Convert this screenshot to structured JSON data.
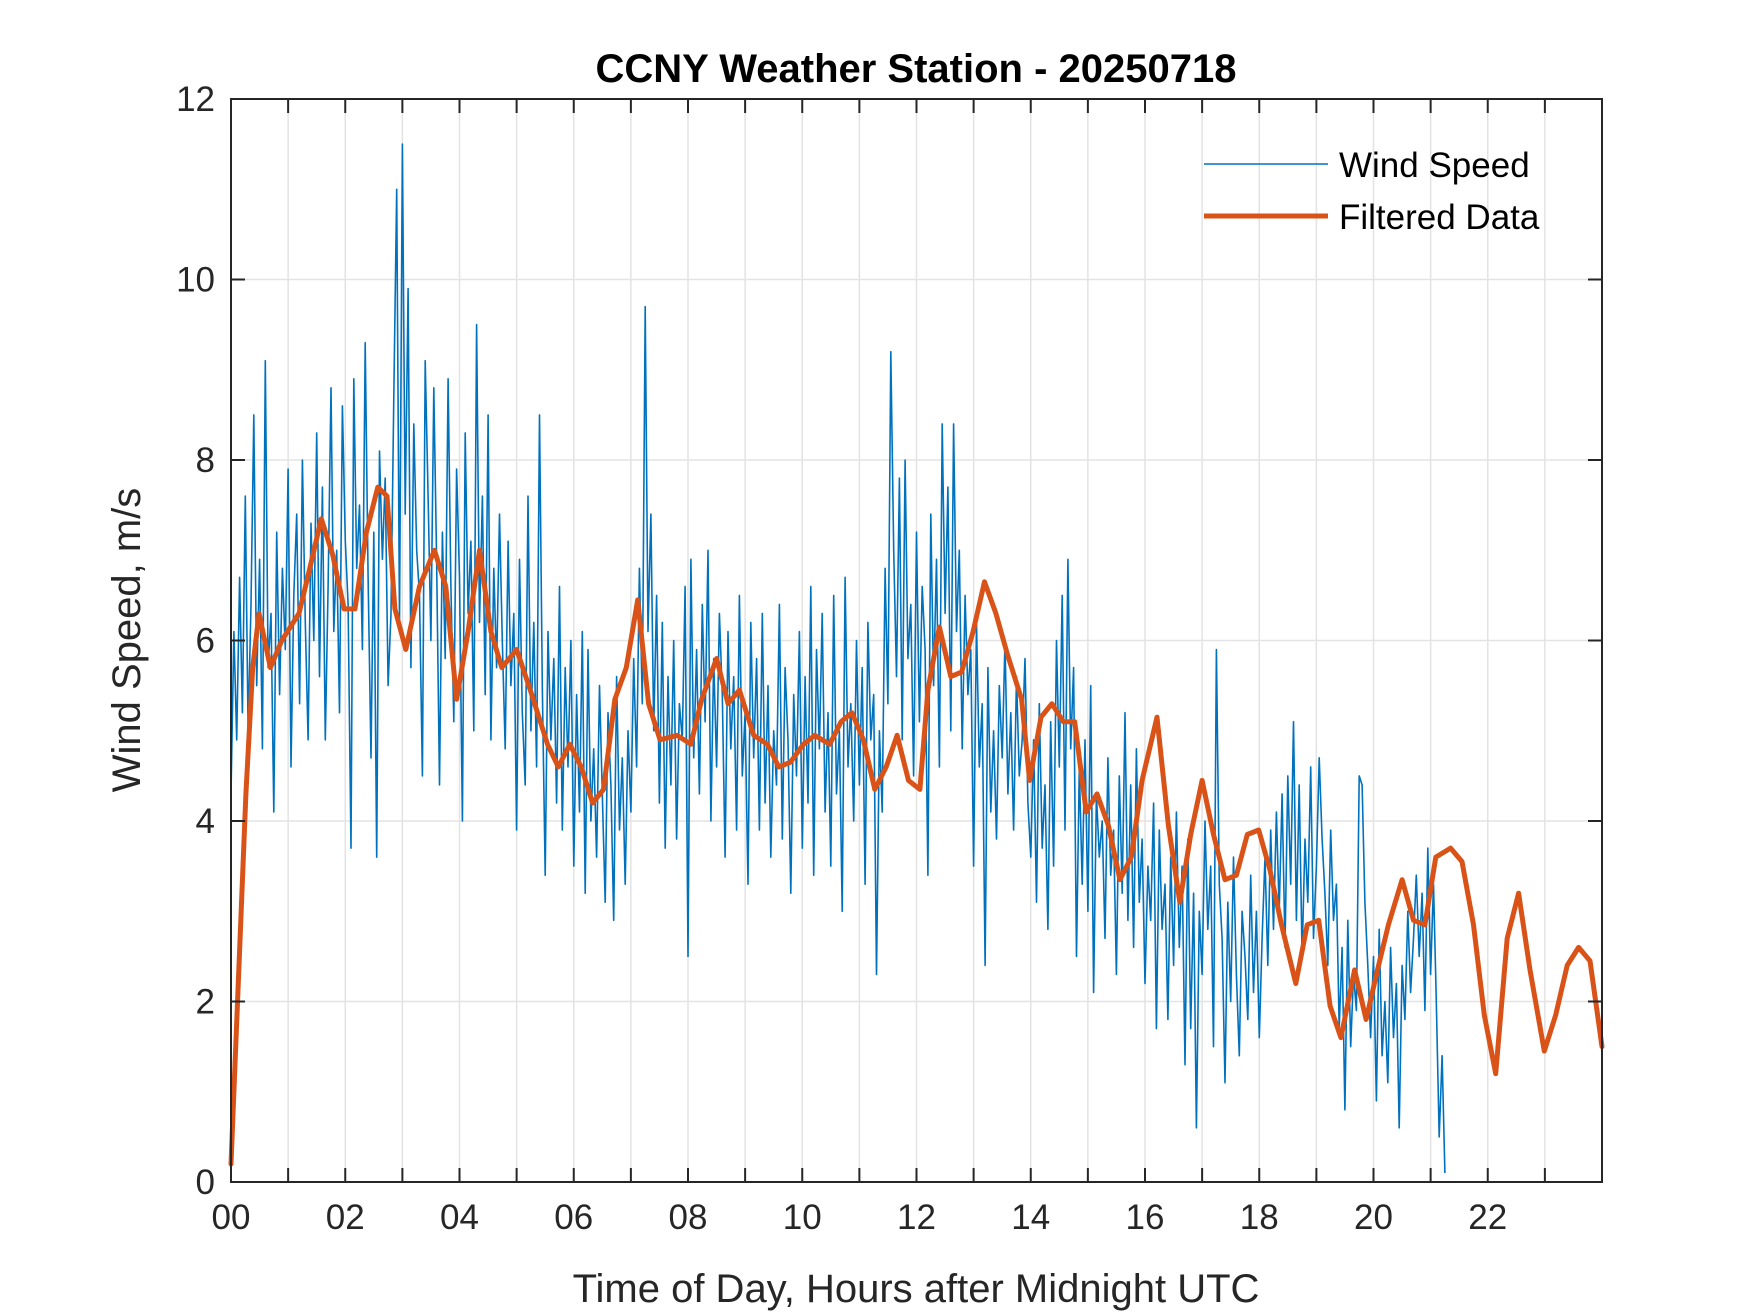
{
  "chart_data": {
    "type": "line",
    "title": "CCNY Weather Station - 20250718",
    "xlabel": "Time of Day, Hours after Midnight UTC",
    "ylabel": "Wind Speed, m/s",
    "xlim": [
      0,
      24
    ],
    "ylim": [
      0,
      12
    ],
    "grid": true,
    "x_ticks": [
      0,
      2,
      4,
      6,
      8,
      10,
      12,
      14,
      16,
      18,
      20,
      22
    ],
    "x_tick_labels": [
      "00",
      "02",
      "04",
      "06",
      "08",
      "10",
      "12",
      "14",
      "16",
      "18",
      "20",
      "22"
    ],
    "x_minor_grid_step_hours": 1,
    "y_ticks": [
      0,
      2,
      4,
      6,
      8,
      10,
      12
    ],
    "y_tick_labels": [
      "0",
      "2",
      "4",
      "6",
      "8",
      "10",
      "12"
    ],
    "legend": {
      "placement": "top-right",
      "entries": [
        "Wind Speed",
        "Filtered Data"
      ]
    },
    "series": [
      {
        "name": "Wind Speed",
        "color": "#0072BD",
        "x_start_hours": 0,
        "x_step_hours": 0.05,
        "values": [
          4.3,
          6.1,
          4.9,
          6.7,
          5.2,
          7.6,
          5.0,
          6.4,
          8.5,
          5.5,
          6.9,
          4.8,
          9.1,
          5.7,
          6.3,
          4.1,
          7.2,
          5.4,
          6.8,
          5.9,
          7.9,
          4.6,
          6.5,
          7.4,
          5.3,
          8.0,
          6.2,
          4.9,
          7.3,
          6.0,
          8.3,
          5.6,
          7.7,
          4.9,
          6.6,
          8.8,
          6.1,
          7.0,
          5.2,
          8.6,
          7.1,
          6.4,
          3.7,
          8.9,
          6.8,
          7.5,
          5.9,
          9.3,
          6.7,
          4.7,
          7.2,
          3.6,
          8.1,
          6.9,
          7.8,
          5.5,
          6.3,
          8.7,
          11.0,
          6.2,
          11.5,
          7.4,
          9.9,
          5.7,
          8.4,
          7.0,
          6.5,
          4.5,
          9.1,
          7.6,
          6.0,
          8.8,
          6.9,
          4.4,
          7.2,
          5.8,
          8.9,
          6.6,
          5.1,
          7.9,
          6.7,
          4.0,
          8.3,
          6.3,
          7.1,
          5.0,
          9.5,
          6.2,
          7.6,
          5.4,
          8.5,
          4.9,
          6.8,
          5.7,
          7.4,
          6.0,
          4.8,
          7.1,
          5.5,
          6.3,
          3.9,
          6.9,
          5.2,
          4.4,
          7.6,
          5.0,
          6.2,
          4.6,
          8.5,
          5.5,
          3.4,
          6.1,
          4.9,
          5.8,
          4.2,
          6.6,
          3.9,
          5.7,
          4.6,
          6.0,
          3.5,
          5.4,
          4.1,
          6.1,
          3.2,
          5.9,
          4.0,
          4.8,
          3.6,
          5.5,
          4.3,
          3.1,
          5.2,
          4.4,
          2.9,
          5.6,
          3.9,
          4.7,
          3.3,
          5.0,
          4.1,
          5.8,
          4.6,
          6.8,
          5.3,
          9.7,
          6.1,
          7.4,
          5.0,
          6.5,
          4.2,
          6.2,
          3.7,
          5.6,
          4.4,
          6.0,
          3.8,
          5.3,
          4.9,
          6.6,
          2.5,
          6.9,
          4.7,
          5.9,
          4.3,
          6.4,
          5.1,
          7.0,
          4.0,
          5.8,
          4.6,
          6.3,
          5.4,
          3.6,
          6.1,
          4.8,
          5.6,
          3.9,
          6.5,
          4.5,
          5.2,
          3.3,
          6.2,
          4.7,
          5.8,
          3.9,
          6.3,
          4.2,
          5.5,
          3.6,
          5.0,
          4.4,
          6.4,
          3.8,
          5.7,
          4.9,
          3.2,
          5.4,
          4.5,
          6.1,
          3.7,
          5.6,
          4.2,
          6.6,
          3.4,
          5.9,
          4.8,
          6.3,
          4.1,
          5.2,
          3.5,
          6.5,
          4.3,
          5.0,
          3.0,
          6.7,
          4.6,
          5.3,
          4.0,
          6.0,
          4.4,
          5.7,
          3.3,
          6.2,
          4.9,
          5.4,
          2.3,
          5.0,
          4.1,
          6.8,
          5.3,
          9.2,
          7.0,
          5.6,
          7.8,
          4.9,
          8.0,
          5.8,
          6.4,
          4.5,
          7.2,
          5.1,
          6.6,
          5.9,
          3.4,
          7.4,
          5.5,
          6.9,
          4.6,
          8.4,
          6.3,
          7.7,
          5.0,
          8.4,
          6.1,
          7.0,
          4.8,
          6.5,
          5.4,
          5.9,
          3.5,
          6.2,
          4.6,
          5.3,
          2.4,
          5.7,
          4.1,
          5.0,
          3.8,
          5.5,
          4.7,
          6.0,
          4.3,
          5.2,
          3.9,
          5.6,
          4.5,
          4.9,
          5.8,
          4.2,
          3.6,
          4.9,
          3.1,
          5.3,
          3.7,
          4.4,
          2.8,
          5.1,
          3.5,
          6.0,
          4.6,
          6.5,
          3.9,
          6.9,
          4.8,
          5.7,
          2.5,
          4.6,
          3.3,
          4.9,
          3.0,
          5.5,
          2.1,
          4.3,
          3.6,
          4.0,
          2.7,
          4.7,
          3.4,
          3.9,
          2.3,
          4.5,
          3.2,
          5.2,
          2.9,
          4.4,
          2.6,
          4.8,
          3.1,
          3.8,
          2.2,
          3.5,
          2.9,
          4.2,
          1.7,
          3.9,
          2.8,
          3.3,
          1.8,
          3.6,
          2.4,
          4.1,
          2.6,
          3.5,
          1.3,
          3.8,
          1.7,
          3.2,
          0.6,
          3.0,
          2.3,
          4.0,
          2.8,
          3.5,
          1.5,
          5.9,
          3.3,
          2.7,
          1.1,
          3.1,
          2.0,
          3.6,
          2.3,
          1.4,
          3.0,
          2.5,
          1.8,
          3.4,
          2.1,
          3.0,
          1.6,
          2.7,
          3.6,
          2.4,
          3.9,
          2.8,
          4.1,
          3.0,
          4.3,
          2.6,
          4.5,
          3.3,
          5.1,
          2.9,
          4.4,
          2.5,
          3.8,
          3.1,
          4.6,
          2.7,
          3.5,
          4.7,
          3.8,
          3.2,
          2.4,
          3.9,
          2.9,
          3.3,
          1.7,
          2.6,
          0.8,
          2.9,
          1.5,
          2.3,
          1.9,
          4.5,
          4.4,
          3.1,
          2.4,
          1.6,
          2.5,
          0.9,
          2.8,
          1.4,
          2.0,
          1.1,
          2.6,
          1.6,
          2.2,
          0.6,
          2.4,
          1.8,
          3.0,
          2.1,
          2.7,
          3.4,
          2.5,
          3.2,
          1.9,
          3.7,
          2.3,
          3.3,
          2.0,
          0.5,
          1.4,
          0.1
        ]
      },
      {
        "name": "Filtered Data",
        "color": "#D95319",
        "points": [
          [
            0,
            0.2
          ],
          [
            0.26,
            4.3
          ],
          [
            0.38,
            5.7
          ],
          [
            0.49,
            6.3
          ],
          [
            0.69,
            5.7
          ],
          [
            0.89,
            6.0
          ],
          [
            1.19,
            6.3
          ],
          [
            1.38,
            6.8
          ],
          [
            1.58,
            7.35
          ],
          [
            1.78,
            6.95
          ],
          [
            1.98,
            6.35
          ],
          [
            2.17,
            6.35
          ],
          [
            2.37,
            7.2
          ],
          [
            2.57,
            7.7
          ],
          [
            2.73,
            7.6
          ],
          [
            2.87,
            6.35
          ],
          [
            3.06,
            5.9
          ],
          [
            3.3,
            6.6
          ],
          [
            3.56,
            7.0
          ],
          [
            3.76,
            6.6
          ],
          [
            3.95,
            5.35
          ],
          [
            4.15,
            6.1
          ],
          [
            4.35,
            7.0
          ],
          [
            4.55,
            6.1
          ],
          [
            4.74,
            5.7
          ],
          [
            5.0,
            5.9
          ],
          [
            5.24,
            5.45
          ],
          [
            5.54,
            4.85
          ],
          [
            5.73,
            4.6
          ],
          [
            5.93,
            4.85
          ],
          [
            6.13,
            4.6
          ],
          [
            6.33,
            4.2
          ],
          [
            6.52,
            4.35
          ],
          [
            6.72,
            5.35
          ],
          [
            6.92,
            5.7
          ],
          [
            7.12,
            6.45
          ],
          [
            7.31,
            5.3
          ],
          [
            7.51,
            4.9
          ],
          [
            7.81,
            4.95
          ],
          [
            8.05,
            4.85
          ],
          [
            8.24,
            5.35
          ],
          [
            8.5,
            5.8
          ],
          [
            8.7,
            5.3
          ],
          [
            8.9,
            5.45
          ],
          [
            9.15,
            4.95
          ],
          [
            9.39,
            4.85
          ],
          [
            9.59,
            4.6
          ],
          [
            9.79,
            4.65
          ],
          [
            10.02,
            4.85
          ],
          [
            10.22,
            4.95
          ],
          [
            10.48,
            4.85
          ],
          [
            10.68,
            5.1
          ],
          [
            10.87,
            5.2
          ],
          [
            11.07,
            4.9
          ],
          [
            11.27,
            4.35
          ],
          [
            11.47,
            4.6
          ],
          [
            11.66,
            4.95
          ],
          [
            11.86,
            4.45
          ],
          [
            12.06,
            4.35
          ],
          [
            12.2,
            5.45
          ],
          [
            12.4,
            6.15
          ],
          [
            12.6,
            5.6
          ],
          [
            12.79,
            5.65
          ],
          [
            12.99,
            6.1
          ],
          [
            13.19,
            6.65
          ],
          [
            13.39,
            6.3
          ],
          [
            13.59,
            5.85
          ],
          [
            13.84,
            5.35
          ],
          [
            13.98,
            4.45
          ],
          [
            14.18,
            5.15
          ],
          [
            14.37,
            5.3
          ],
          [
            14.57,
            5.1
          ],
          [
            14.77,
            5.1
          ],
          [
            14.97,
            4.1
          ],
          [
            15.16,
            4.3
          ],
          [
            15.36,
            3.95
          ],
          [
            15.56,
            3.35
          ],
          [
            15.76,
            3.6
          ],
          [
            15.95,
            4.45
          ],
          [
            16.21,
            5.15
          ],
          [
            16.41,
            3.95
          ],
          [
            16.61,
            3.1
          ],
          [
            16.8,
            3.85
          ],
          [
            17.0,
            4.45
          ],
          [
            17.2,
            3.85
          ],
          [
            17.4,
            3.35
          ],
          [
            17.6,
            3.4
          ],
          [
            17.79,
            3.85
          ],
          [
            17.99,
            3.9
          ],
          [
            18.19,
            3.45
          ],
          [
            18.39,
            2.85
          ],
          [
            18.64,
            2.2
          ],
          [
            18.84,
            2.85
          ],
          [
            19.04,
            2.9
          ],
          [
            19.24,
            1.95
          ],
          [
            19.43,
            1.6
          ],
          [
            19.67,
            2.35
          ],
          [
            19.87,
            1.8
          ],
          [
            20.07,
            2.35
          ],
          [
            20.26,
            2.85
          ],
          [
            20.5,
            3.35
          ],
          [
            20.7,
            2.9
          ],
          [
            20.9,
            2.85
          ],
          [
            21.09,
            3.6
          ],
          [
            21.35,
            3.7
          ],
          [
            21.55,
            3.55
          ],
          [
            21.75,
            2.85
          ],
          [
            21.94,
            1.85
          ],
          [
            22.14,
            1.2
          ],
          [
            22.34,
            2.7
          ],
          [
            22.54,
            3.2
          ],
          [
            22.74,
            2.35
          ],
          [
            22.99,
            1.45
          ],
          [
            23.19,
            1.85
          ],
          [
            23.39,
            2.4
          ],
          [
            23.59,
            2.6
          ],
          [
            23.79,
            2.45
          ],
          [
            24.0,
            1.5
          ]
        ]
      }
    ]
  }
}
